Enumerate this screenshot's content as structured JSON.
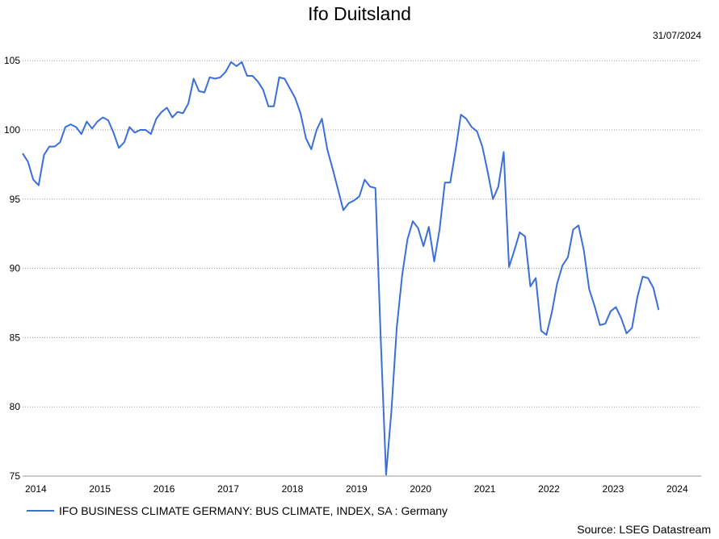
{
  "chart_data": {
    "type": "line",
    "title": "Ifo Duitsland",
    "date_label": "31/07/2024",
    "source": "Source: LSEG Datastream",
    "ylim": [
      75,
      106
    ],
    "xlim": [
      2014.0,
      2024.58
    ],
    "y_ticks": [
      75,
      80,
      85,
      90,
      95,
      100,
      105
    ],
    "x_ticks": [
      {
        "label": "2014",
        "value": 2014.0
      },
      {
        "label": "2015",
        "value": 2015.0
      },
      {
        "label": "2016",
        "value": 2016.0
      },
      {
        "label": "2017",
        "value": 2017.0
      },
      {
        "label": "2018",
        "value": 2018.0
      },
      {
        "label": "2019",
        "value": 2019.0
      },
      {
        "label": "2020",
        "value": 2020.0
      },
      {
        "label": "2021",
        "value": 2021.0
      },
      {
        "label": "2022",
        "value": 2022.0
      },
      {
        "label": "2023",
        "value": 2023.0
      },
      {
        "label": "2024",
        "value": 2024.0
      }
    ],
    "grid": true,
    "legend_position": "bottom-left",
    "series": [
      {
        "name": "IFO BUSINESS CLIMATE GERMANY: BUS CLIMATE, INDEX, SA : Germany",
        "color": "#3a6fd8",
        "start": "2014-01",
        "values": [
          98.3,
          97.7,
          96.4,
          96.0,
          98.2,
          98.8,
          98.8,
          99.1,
          100.2,
          100.4,
          100.2,
          99.7,
          100.6,
          100.1,
          100.6,
          100.9,
          100.7,
          99.8,
          98.7,
          99.1,
          100.2,
          99.8,
          100.0,
          100.0,
          99.7,
          100.8,
          101.3,
          101.6,
          100.9,
          101.3,
          101.2,
          101.9,
          103.7,
          102.8,
          102.7,
          103.8,
          103.7,
          103.8,
          104.2,
          104.9,
          104.6,
          104.9,
          103.9,
          103.9,
          103.5,
          102.9,
          101.7,
          101.7,
          103.8,
          103.7,
          103.0,
          102.3,
          101.2,
          99.4,
          98.6,
          100.0,
          100.8,
          98.6,
          97.2,
          95.7,
          94.2,
          94.7,
          94.9,
          95.2,
          96.4,
          95.9,
          95.8,
          84.9,
          75.1,
          79.7,
          85.7,
          89.5,
          92.1,
          93.4,
          92.9,
          91.6,
          93.0,
          90.5,
          92.8,
          96.2,
          96.2,
          98.5,
          101.1,
          100.8,
          100.2,
          99.9,
          98.8,
          97.0,
          95.0,
          95.9,
          98.4,
          90.1,
          91.3,
          92.6,
          92.3,
          88.7,
          89.3,
          85.5,
          85.2,
          86.8,
          88.9,
          90.2,
          90.8,
          92.8,
          93.1,
          91.3,
          88.5,
          87.3,
          85.9,
          86.0,
          86.9,
          87.2,
          86.4,
          85.3,
          85.7,
          87.9,
          89.4,
          89.3,
          88.6,
          87.0
        ]
      }
    ]
  }
}
